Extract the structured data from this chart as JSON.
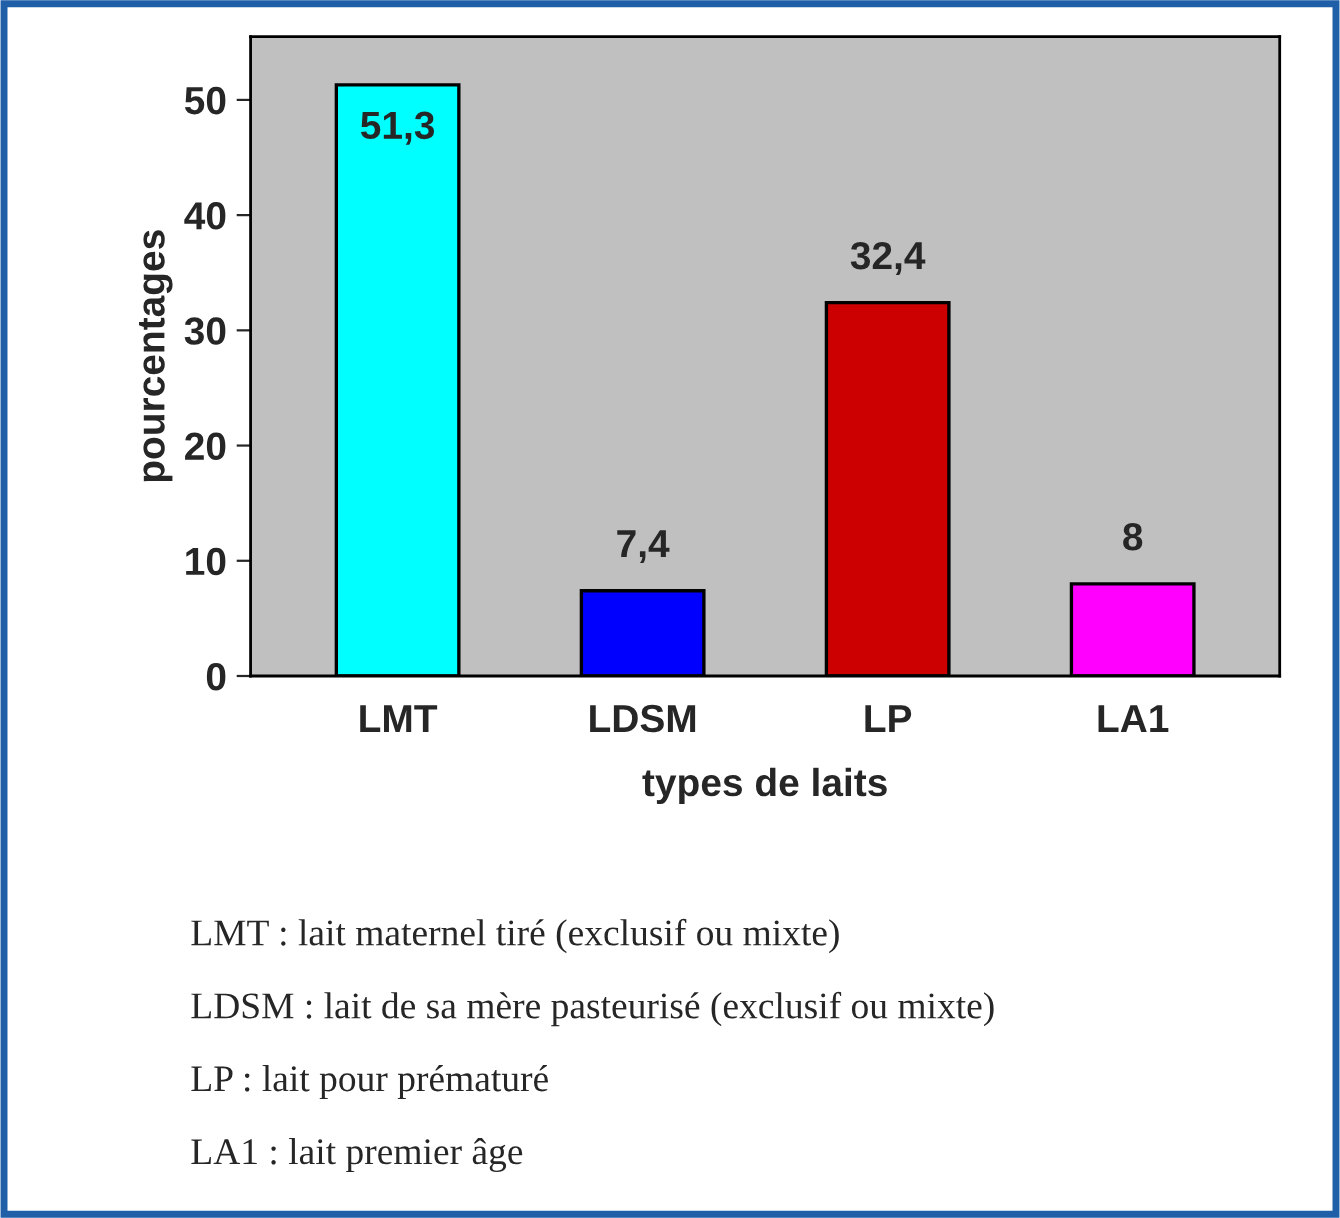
{
  "chart_data": {
    "type": "bar",
    "xlabel": "types de laits",
    "ylabel": "pourcentages",
    "categories": [
      "LMT",
      "LDSM",
      "LP",
      "LA1"
    ],
    "values": [
      51.3,
      7.4,
      32.4,
      8
    ],
    "colors": [
      "#00ffff",
      "#0000ff",
      "#cc0000",
      "#ff00ff"
    ],
    "value_labels": [
      "51,3",
      "7,4",
      "32,4",
      "8"
    ],
    "ylim": [
      0,
      55.5
    ],
    "yticks": [
      0,
      10,
      20,
      30,
      40,
      50
    ],
    "grid": false,
    "legend": false,
    "annotations": [
      "LMT : lait maternel tiré (exclusif ou mixte)",
      "LDSM : lait de sa mère pasteurisé (exclusif ou mixte)",
      "LP : lait pour prématuré",
      "LA1 : lait premier âge"
    ]
  }
}
